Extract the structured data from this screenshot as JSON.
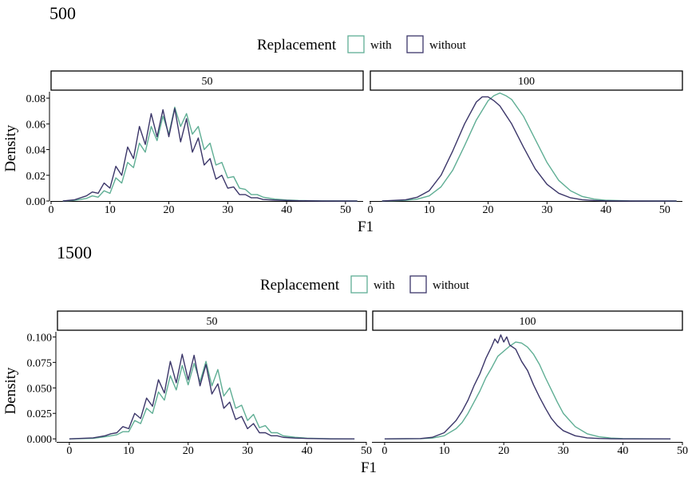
{
  "legend": {
    "title": "Replacement",
    "items": [
      {
        "label": "with",
        "color": "#5fae94"
      },
      {
        "label": "without",
        "color": "#3b3669"
      }
    ]
  },
  "chart_data": [
    {
      "type": "line",
      "title": "500",
      "xlabel": "F1",
      "ylabel": "Density",
      "legend_position": "top",
      "grid": false,
      "xlim": [
        0,
        53
      ],
      "ylim": [
        0,
        0.085
      ],
      "yticks": [
        0.0,
        0.02,
        0.04,
        0.06,
        0.08
      ],
      "ytick_labels": [
        "0.00",
        "0.02",
        "0.04",
        "0.06",
        "0.08"
      ],
      "xticks": [
        0,
        10,
        20,
        30,
        40,
        50
      ],
      "xtick_labels": [
        "0",
        "10",
        "20",
        "30",
        "40",
        "50"
      ],
      "panels": [
        {
          "label": "50",
          "series": [
            {
              "name": "with",
              "x": [
                2,
                4,
                6,
                7,
                8,
                9,
                10,
                11,
                12,
                13,
                14,
                15,
                16,
                17,
                18,
                19,
                20,
                21,
                22,
                23,
                24,
                25,
                26,
                27,
                28,
                29,
                30,
                31,
                32,
                33,
                34,
                35,
                36,
                38,
                40,
                42,
                46,
                52
              ],
              "y": [
                0.0,
                0.0005,
                0.002,
                0.004,
                0.003,
                0.008,
                0.006,
                0.018,
                0.014,
                0.03,
                0.026,
                0.045,
                0.038,
                0.058,
                0.047,
                0.066,
                0.052,
                0.073,
                0.058,
                0.068,
                0.052,
                0.058,
                0.04,
                0.045,
                0.028,
                0.03,
                0.018,
                0.019,
                0.01,
                0.009,
                0.005,
                0.005,
                0.003,
                0.0015,
                0.0008,
                0.0004,
                0.0001,
                0.0
              ]
            },
            {
              "name": "without",
              "x": [
                2,
                4,
                6,
                7,
                8,
                9,
                10,
                11,
                12,
                13,
                14,
                15,
                16,
                17,
                18,
                19,
                20,
                21,
                22,
                23,
                24,
                25,
                26,
                27,
                28,
                29,
                30,
                31,
                32,
                33,
                34,
                35,
                36,
                38,
                40,
                42,
                46,
                52
              ],
              "y": [
                0.0,
                0.001,
                0.004,
                0.007,
                0.006,
                0.014,
                0.01,
                0.027,
                0.02,
                0.042,
                0.033,
                0.058,
                0.044,
                0.068,
                0.05,
                0.071,
                0.05,
                0.072,
                0.046,
                0.064,
                0.038,
                0.049,
                0.028,
                0.033,
                0.017,
                0.02,
                0.01,
                0.011,
                0.005,
                0.005,
                0.0025,
                0.0025,
                0.0012,
                0.0007,
                0.0004,
                0.0002,
                0.0,
                0.0
              ]
            }
          ]
        },
        {
          "label": "100",
          "series": [
            {
              "name": "with",
              "x": [
                2,
                6,
                8,
                10,
                12,
                14,
                16,
                18,
                20,
                21,
                22,
                23,
                24,
                26,
                28,
                30,
                32,
                34,
                36,
                38,
                40,
                44,
                52
              ],
              "y": [
                0.0,
                0.0005,
                0.0015,
                0.004,
                0.011,
                0.024,
                0.043,
                0.063,
                0.078,
                0.082,
                0.084,
                0.082,
                0.079,
                0.066,
                0.048,
                0.03,
                0.016,
                0.008,
                0.0035,
                0.0015,
                0.0006,
                0.0001,
                0.0
              ]
            },
            {
              "name": "without",
              "x": [
                2,
                6,
                8,
                10,
                12,
                14,
                16,
                18,
                19,
                20,
                21,
                22,
                24,
                26,
                28,
                30,
                32,
                34,
                36,
                38,
                40,
                44,
                52
              ],
              "y": [
                0.0,
                0.001,
                0.003,
                0.008,
                0.02,
                0.039,
                0.06,
                0.077,
                0.081,
                0.081,
                0.078,
                0.074,
                0.06,
                0.042,
                0.025,
                0.013,
                0.006,
                0.0025,
                0.001,
                0.0004,
                0.0001,
                0.0,
                0.0
              ]
            }
          ]
        }
      ]
    },
    {
      "type": "line",
      "title": "1500",
      "xlabel": "F1",
      "ylabel": "Density",
      "legend_position": "top",
      "grid": false,
      "xlim": [
        -2,
        50
      ],
      "ylim": [
        -0.003,
        0.105
      ],
      "yticks": [
        0.0,
        0.025,
        0.05,
        0.075,
        0.1
      ],
      "ytick_labels": [
        "0.000",
        "0.025",
        "0.050",
        "0.075",
        "0.100"
      ],
      "xticks": [
        0,
        10,
        20,
        30,
        40,
        50
      ],
      "xtick_labels": [
        "0",
        "10",
        "20",
        "30",
        "40",
        "50"
      ],
      "panels": [
        {
          "label": "50",
          "series": [
            {
              "name": "with",
              "x": [
                0,
                4,
                6,
                7,
                8,
                9,
                10,
                11,
                12,
                13,
                14,
                15,
                16,
                17,
                18,
                19,
                20,
                21,
                22,
                23,
                24,
                25,
                26,
                27,
                28,
                29,
                30,
                31,
                32,
                33,
                34,
                35,
                36,
                38,
                40,
                44,
                48
              ],
              "y": [
                0.0,
                0.0005,
                0.002,
                0.003,
                0.004,
                0.007,
                0.007,
                0.018,
                0.015,
                0.03,
                0.025,
                0.046,
                0.038,
                0.062,
                0.048,
                0.072,
                0.053,
                0.074,
                0.056,
                0.076,
                0.052,
                0.068,
                0.042,
                0.05,
                0.03,
                0.033,
                0.018,
                0.024,
                0.011,
                0.013,
                0.006,
                0.006,
                0.003,
                0.0015,
                0.0007,
                0.0001,
                0.0
              ]
            },
            {
              "name": "without",
              "x": [
                0,
                4,
                6,
                7,
                8,
                9,
                10,
                11,
                12,
                13,
                14,
                15,
                16,
                17,
                18,
                19,
                20,
                21,
                22,
                23,
                24,
                25,
                26,
                27,
                28,
                29,
                30,
                31,
                32,
                33,
                34,
                35,
                36,
                38,
                40,
                44,
                48
              ],
              "y": [
                0.0,
                0.001,
                0.003,
                0.005,
                0.006,
                0.012,
                0.01,
                0.025,
                0.02,
                0.04,
                0.032,
                0.058,
                0.045,
                0.076,
                0.055,
                0.083,
                0.058,
                0.082,
                0.052,
                0.073,
                0.044,
                0.054,
                0.03,
                0.036,
                0.019,
                0.022,
                0.01,
                0.015,
                0.006,
                0.006,
                0.003,
                0.003,
                0.0015,
                0.0008,
                0.0004,
                0.0,
                0.0
              ]
            }
          ]
        },
        {
          "label": "100",
          "series": [
            {
              "name": "with",
              "x": [
                0,
                6,
                8,
                10,
                12,
                13,
                14,
                15,
                16,
                17,
                18,
                19,
                20,
                21,
                22,
                23,
                24,
                25,
                26,
                27,
                28,
                29,
                30,
                32,
                34,
                36,
                38,
                40,
                44,
                48
              ],
              "y": [
                0.0,
                0.0002,
                0.0008,
                0.003,
                0.01,
                0.016,
                0.025,
                0.036,
                0.047,
                0.06,
                0.07,
                0.081,
                0.086,
                0.091,
                0.095,
                0.094,
                0.09,
                0.083,
                0.073,
                0.06,
                0.048,
                0.036,
                0.025,
                0.012,
                0.005,
                0.002,
                0.0008,
                0.0003,
                0.0001,
                0.0
              ]
            },
            {
              "name": "without",
              "x": [
                0,
                6,
                8,
                10,
                11,
                12,
                13,
                14,
                15,
                16,
                17,
                18,
                18.5,
                19,
                19.5,
                20,
                20.5,
                21,
                22,
                23,
                24,
                25,
                26,
                27,
                28,
                29,
                30,
                32,
                34,
                36,
                38,
                40,
                44,
                48
              ],
              "y": [
                0.0,
                0.0003,
                0.0015,
                0.006,
                0.012,
                0.018,
                0.027,
                0.038,
                0.052,
                0.064,
                0.079,
                0.091,
                0.098,
                0.094,
                0.102,
                0.095,
                0.1,
                0.092,
                0.088,
                0.076,
                0.067,
                0.053,
                0.041,
                0.03,
                0.02,
                0.013,
                0.008,
                0.003,
                0.001,
                0.0004,
                0.0001,
                0.0,
                0.0,
                0.0
              ]
            }
          ]
        }
      ]
    }
  ]
}
